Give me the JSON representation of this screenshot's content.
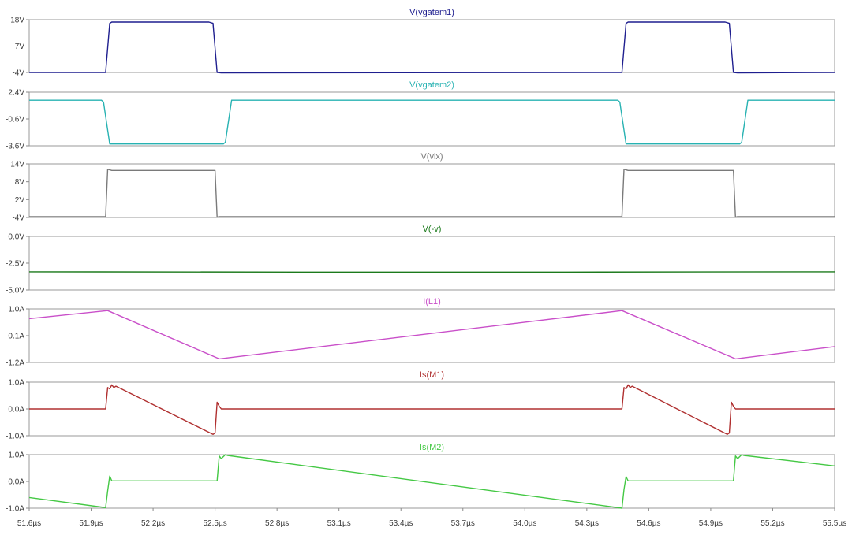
{
  "chart_data": [
    {
      "type": "line",
      "title": "V(vgatem1)",
      "yticks": [
        "18V",
        "7V",
        "-4V"
      ],
      "ylim": [
        -4,
        18
      ],
      "xlim": [
        51.6,
        55.5
      ],
      "series": [
        {
          "name": "V(vgatem1)",
          "color": "#1f1f8f",
          "x": [
            51.6,
            51.97,
            51.99,
            52.0,
            52.47,
            52.49,
            52.51,
            52.53,
            54.47,
            54.49,
            54.5,
            54.97,
            54.99,
            55.01,
            55.03,
            55.5
          ],
          "y": [
            -4.0,
            -4.0,
            16.5,
            17.0,
            17.0,
            16.5,
            -4.0,
            -4.2,
            -4.0,
            16.5,
            17.0,
            17.0,
            16.5,
            -4.0,
            -4.2,
            -4.0
          ]
        }
      ]
    },
    {
      "type": "line",
      "title": "V(vgatem2)",
      "yticks": [
        "2.4V",
        "-0.6V",
        "-3.6V"
      ],
      "ylim": [
        -3.6,
        2.4
      ],
      "xlim": [
        51.6,
        55.5
      ],
      "series": [
        {
          "name": "V(vgatem2)",
          "color": "#27b2b2",
          "x": [
            51.6,
            51.95,
            51.96,
            51.99,
            52.54,
            52.55,
            52.58,
            54.45,
            54.46,
            54.49,
            55.04,
            55.05,
            55.08,
            55.5
          ],
          "y": [
            1.5,
            1.5,
            1.3,
            -3.4,
            -3.4,
            -3.2,
            1.5,
            1.5,
            1.3,
            -3.4,
            -3.4,
            -3.2,
            1.5,
            1.5
          ]
        }
      ]
    },
    {
      "type": "line",
      "title": "V(vlx)",
      "yticks": [
        "14V",
        "8V",
        "2V",
        "-4V"
      ],
      "ylim": [
        -4,
        14
      ],
      "xlim": [
        51.6,
        55.5
      ],
      "series": [
        {
          "name": "V(vlx)",
          "color": "#7a7a7a",
          "x": [
            51.6,
            51.97,
            51.98,
            52.0,
            52.5,
            52.51,
            52.52,
            54.47,
            54.48,
            54.5,
            55.01,
            55.02,
            55.03,
            55.5
          ],
          "y": [
            -3.7,
            -3.7,
            12.2,
            11.8,
            11.8,
            -3.9,
            -3.7,
            -3.7,
            12.2,
            11.8,
            11.8,
            -3.9,
            -3.7,
            -3.7
          ]
        }
      ]
    },
    {
      "type": "line",
      "title": "V(-v)",
      "yticks": [
        "0.0V",
        "-2.5V",
        "-5.0V"
      ],
      "ylim": [
        -5,
        0
      ],
      "xlim": [
        51.6,
        55.5
      ],
      "series": [
        {
          "name": "V(-v)",
          "color": "#1c7a1c",
          "x": [
            51.6,
            53.0,
            54.2,
            55.5
          ],
          "y": [
            -3.3,
            -3.33,
            -3.33,
            -3.3
          ]
        }
      ]
    },
    {
      "type": "line",
      "title": "I(L1)",
      "yticks": [
        "1.0A",
        "-0.1A",
        "-1.2A"
      ],
      "ylim": [
        -1.2,
        1.0
      ],
      "xlim": [
        51.6,
        55.5
      ],
      "series": [
        {
          "name": "I(L1)",
          "color": "#c94fc9",
          "x": [
            51.6,
            51.98,
            52.52,
            54.47,
            55.02,
            55.5
          ],
          "y": [
            0.6,
            0.93,
            -1.05,
            0.93,
            -1.05,
            -0.55
          ]
        }
      ]
    },
    {
      "type": "line",
      "title": "Is(M1)",
      "yticks": [
        "1.0A",
        "0.0A",
        "-1.0A"
      ],
      "ylim": [
        -1.0,
        1.0
      ],
      "xlim": [
        51.6,
        55.5
      ],
      "series": [
        {
          "name": "Is(M1)",
          "color": "#b03030",
          "x": [
            51.6,
            51.97,
            51.98,
            51.99,
            52.0,
            52.01,
            52.02,
            52.49,
            52.5,
            52.51,
            52.52,
            52.53,
            54.46,
            54.47,
            54.48,
            54.49,
            54.5,
            54.51,
            54.52,
            54.98,
            54.99,
            55.0,
            55.01,
            55.02,
            55.5
          ],
          "y": [
            0.0,
            0.0,
            0.8,
            0.75,
            0.9,
            0.8,
            0.85,
            -0.95,
            -0.9,
            0.25,
            0.1,
            0.0,
            0.0,
            0.0,
            0.8,
            0.75,
            0.9,
            0.8,
            0.85,
            -0.95,
            -0.9,
            0.25,
            0.1,
            0.0,
            0.0
          ]
        }
      ]
    },
    {
      "type": "line",
      "title": "Is(M2)",
      "yticks": [
        "1.0A",
        "0.0A",
        "-1.0A"
      ],
      "ylim": [
        -1.0,
        1.0
      ],
      "xlim": [
        51.6,
        55.5
      ],
      "xlabel": "",
      "xticks": [
        "51.6µs",
        "51.9µs",
        "52.2µs",
        "52.5µs",
        "52.8µs",
        "53.1µs",
        "53.4µs",
        "53.7µs",
        "54.0µs",
        "54.3µs",
        "54.6µs",
        "54.9µs",
        "55.2µs",
        "55.5µs"
      ],
      "xtick_values": [
        51.6,
        51.9,
        52.2,
        52.5,
        52.8,
        53.1,
        53.4,
        53.7,
        54.0,
        54.3,
        54.6,
        54.9,
        55.2,
        55.5
      ],
      "series": [
        {
          "name": "Is(M2)",
          "color": "#44c844",
          "x": [
            51.6,
            51.97,
            51.98,
            51.99,
            52.0,
            52.51,
            52.52,
            52.53,
            52.55,
            52.56,
            54.47,
            54.48,
            54.49,
            54.5,
            55.01,
            55.02,
            55.03,
            55.05,
            55.06,
            55.5
          ],
          "y": [
            -0.6,
            -0.98,
            -0.35,
            0.2,
            0.02,
            0.02,
            0.95,
            0.85,
            1.0,
            0.97,
            -1.0,
            -0.3,
            0.18,
            0.02,
            0.02,
            0.95,
            0.85,
            1.0,
            0.97,
            0.58
          ]
        }
      ]
    }
  ]
}
